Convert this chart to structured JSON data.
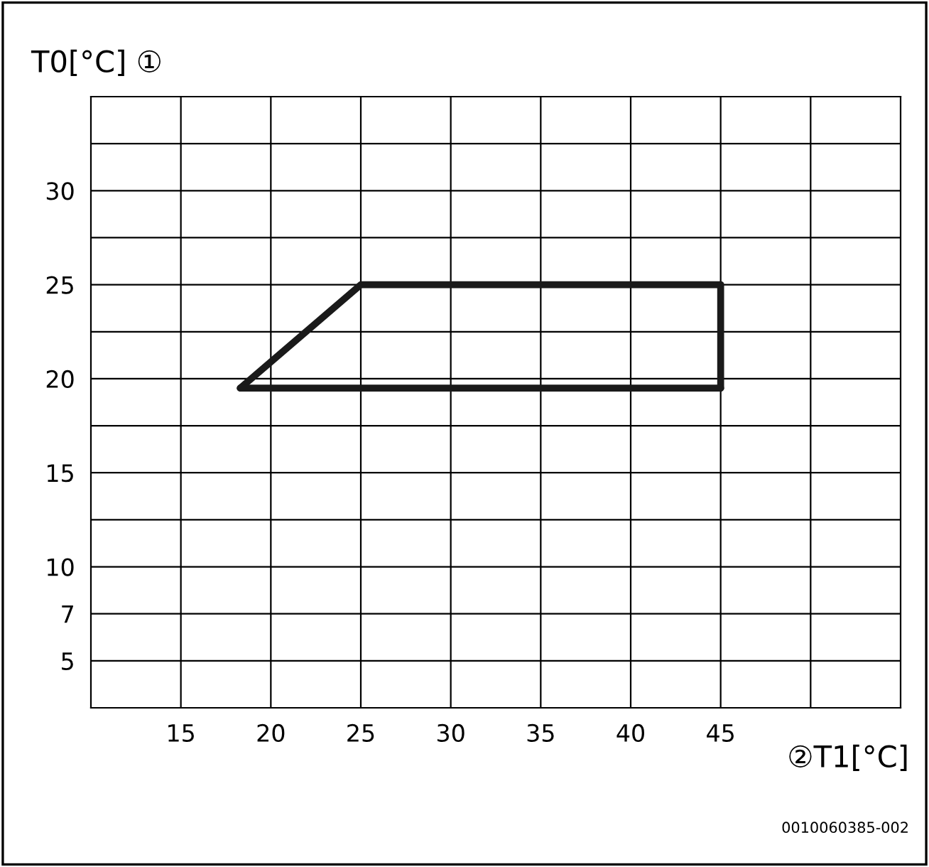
{
  "chart_data": {
    "type": "line",
    "title": "T0[°C] ①",
    "xlabel": "②T1[°C]",
    "series": [
      {
        "color": "#1a1a1a",
        "x": [
          18.3,
          25,
          45
        ],
        "values": [
          19.5,
          25,
          25
        ]
      },
      {
        "color": "#1a1a1a",
        "x": [
          45,
          45
        ],
        "values": [
          25,
          19.5
        ]
      },
      {
        "color": "#1a1a1a",
        "x": [
          18.3,
          45
        ],
        "values": [
          19.5,
          19.5
        ]
      }
    ],
    "xlim": [
      10,
      55
    ],
    "xticks": [
      15,
      20,
      25,
      30,
      35,
      40,
      45,
      {
        "value": 50,
        "label": null
      }
    ],
    "ylim": [
      2.5,
      35
    ],
    "yticks": [
      5,
      {
        "value": 7.5,
        "label": "7"
      },
      10,
      {
        "value": 12.5,
        "label": null
      },
      15,
      {
        "value": 17.5,
        "label": null
      },
      20,
      {
        "value": 22.5,
        "label": null
      },
      25,
      {
        "value": 27.5,
        "label": null
      },
      30,
      {
        "value": 32.5,
        "label": null
      }
    ],
    "grid": true,
    "marker": "none",
    "line_style": "solid",
    "legend": false,
    "annotations": [
      "0010060385-002"
    ]
  }
}
